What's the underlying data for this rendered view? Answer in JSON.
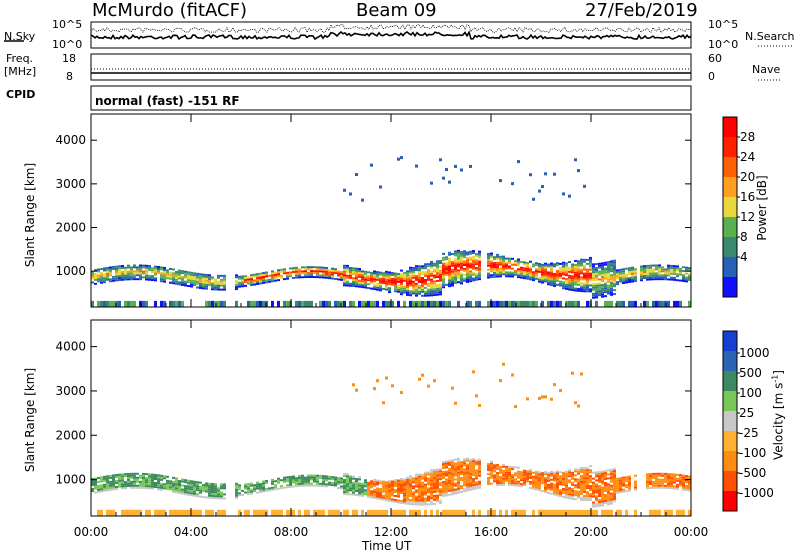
{
  "header": {
    "station": "McMurdo (fitACF)",
    "beam": "Beam 09",
    "date": "27/Feb/2019"
  },
  "top_panels": {
    "nsky_label": "N.Sky",
    "nsky_ticks": [
      "10^5",
      "10^0"
    ],
    "nsearch_label": "N.Search",
    "nsearch_ticks": [
      "10^5",
      "10^0"
    ],
    "freq_label": "Freq.",
    "freq_unit": "[MHz]",
    "freq_ticks": [
      "18",
      "8"
    ],
    "nave_label": "Nave",
    "nave_ticks": [
      "60",
      "0"
    ],
    "cpid_label": "CPID",
    "cpid_value": "normal (fast) -151 RF"
  },
  "colors": {
    "power": [
      "#1010ff",
      "#2860b8",
      "#3a8870",
      "#58b050",
      "#e8d840",
      "#ffa020",
      "#ff6000",
      "#ff2000",
      "#ff0000"
    ],
    "velocity": [
      "#ff0000",
      "#ff5000",
      "#ff8c10",
      "#ffb030",
      "#c8c8c8",
      "#78c858",
      "#3c8a60",
      "#2c64b4",
      "#1840d0"
    ]
  },
  "chart_data": [
    {
      "type": "heatmap",
      "title": "",
      "xlabel": "",
      "ylabel": "Slant Range [km]",
      "x_ticks": [
        "00:00",
        "04:00",
        "08:00",
        "12:00",
        "16:00",
        "20:00",
        "00:00"
      ],
      "x_range_hours": [
        0,
        24
      ],
      "y_ticks": [
        1000,
        2000,
        3000,
        4000
      ],
      "ylim": [
        180,
        4600
      ],
      "colorbar_label": "Power [dB]",
      "colorbar_ticks": [
        "28",
        "24",
        "20",
        "16",
        "12",
        "8",
        "4"
      ],
      "colorbar_range": [
        0,
        32
      ]
    },
    {
      "type": "heatmap",
      "title": "",
      "xlabel": "Time UT",
      "ylabel": "Slant Range [km]",
      "x_ticks": [
        "00:00",
        "04:00",
        "08:00",
        "12:00",
        "16:00",
        "20:00",
        "00:00"
      ],
      "x_range_hours": [
        0,
        24
      ],
      "y_ticks": [
        1000,
        2000,
        3000,
        4000
      ],
      "ylim": [
        180,
        4600
      ],
      "colorbar_label": "Velocity [m s^-1]",
      "colorbar_ticks": [
        "1000",
        "500",
        "100",
        "25",
        "-25",
        "-100",
        "-500",
        "-1000"
      ]
    }
  ]
}
